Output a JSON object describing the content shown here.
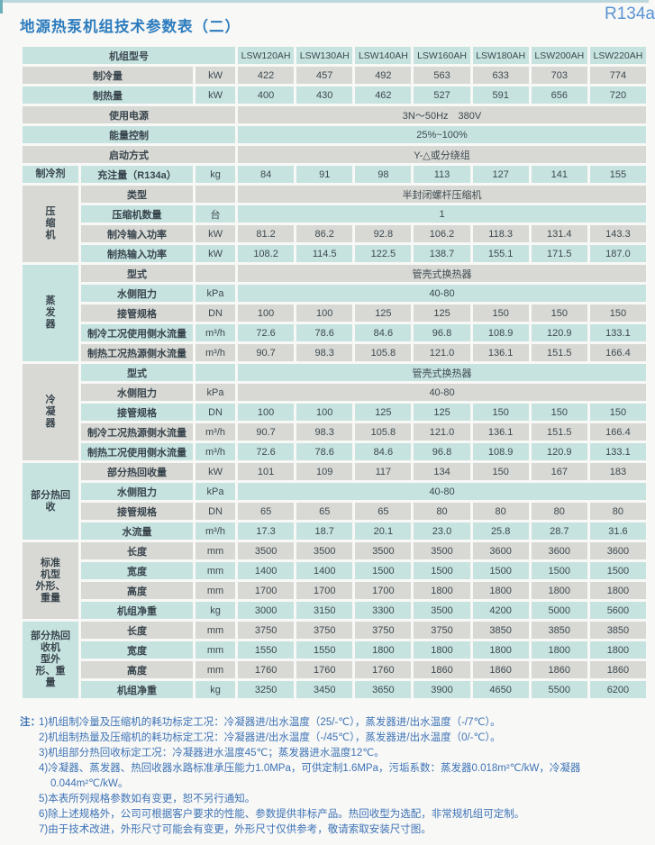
{
  "page": {
    "title": "地源热泵机组技术参数表（二）",
    "badge": "R134a"
  },
  "colors": {
    "row_cyan": "#c6e3e0",
    "row_gray": "#d8d9d4",
    "title_blue": "#2d7cbe",
    "badge_blue": "#5a94d4",
    "notes_blue": "#3e73b6"
  },
  "table": {
    "header_label": "机组型号",
    "models": [
      "LSW120AH",
      "LSW130AH",
      "LSW140AH",
      "LSW160AH",
      "LSW180AH",
      "LSW200AH",
      "LSW220AH"
    ],
    "rows": [
      {
        "label": "制冷量",
        "unit": "kW",
        "nogroup": true,
        "values": [
          "422",
          "457",
          "492",
          "563",
          "633",
          "703",
          "774"
        ]
      },
      {
        "label": "制热量",
        "unit": "kW",
        "nogroup": true,
        "values": [
          "400",
          "430",
          "462",
          "527",
          "591",
          "656",
          "720"
        ]
      },
      {
        "label": "使用电源",
        "nogroup": true,
        "merge_unit": true,
        "value": "3N～50Hz　380V"
      },
      {
        "label": "能量控制",
        "nogroup": true,
        "merge_unit": true,
        "value": "25%~100%"
      },
      {
        "label": "启动方式",
        "nogroup": true,
        "merge_unit": true,
        "value": "Y-△或分绕组"
      },
      {
        "group": {
          "text": "制冷剂",
          "span": 1,
          "color": "c",
          "name": "refrigerant"
        },
        "label": "充注量（R134a）",
        "unit": "kg",
        "values": [
          "84",
          "91",
          "98",
          "113",
          "127",
          "141",
          "155"
        ]
      },
      {
        "group": {
          "text": "压\n缩\n机",
          "span": 4,
          "color": "g",
          "name": "compressor"
        },
        "label": "类型",
        "unit": "",
        "value": "半封闭螺杆压缩机"
      },
      {
        "label": "压缩机数量",
        "unit": "台",
        "value": "1"
      },
      {
        "label": "制冷输入功率",
        "unit": "kW",
        "values": [
          "81.2",
          "86.2",
          "92.8",
          "106.2",
          "118.3",
          "131.4",
          "143.3"
        ]
      },
      {
        "label": "制热输入功率",
        "unit": "kW",
        "values": [
          "108.2",
          "114.5",
          "122.5",
          "138.7",
          "155.1",
          "171.5",
          "187.0"
        ]
      },
      {
        "group": {
          "text": "蒸\n发\n器",
          "span": 5,
          "color": "c",
          "name": "evaporator"
        },
        "label": "型式",
        "unit": "",
        "value": "管壳式换热器"
      },
      {
        "label": "水侧阻力",
        "unit": "kPa",
        "value": "40-80"
      },
      {
        "label": "接管规格",
        "unit": "DN",
        "values": [
          "100",
          "100",
          "125",
          "125",
          "150",
          "150",
          "150"
        ]
      },
      {
        "label": "制冷工况使用侧水流量",
        "unit": "m³/h",
        "values": [
          "72.6",
          "78.6",
          "84.6",
          "96.8",
          "108.9",
          "120.9",
          "133.1"
        ]
      },
      {
        "label": "制热工况热源侧水流量",
        "unit": "m³/h",
        "values": [
          "90.7",
          "98.3",
          "105.8",
          "121.0",
          "136.1",
          "151.5",
          "166.4"
        ]
      },
      {
        "group": {
          "text": "冷\n凝\n器",
          "span": 5,
          "color": "g",
          "name": "condenser"
        },
        "label": "型式",
        "unit": "",
        "value": "管壳式换热器"
      },
      {
        "label": "水侧阻力",
        "unit": "kPa",
        "value": "40-80"
      },
      {
        "label": "接管规格",
        "unit": "DN",
        "values": [
          "100",
          "100",
          "125",
          "125",
          "150",
          "150",
          "150"
        ]
      },
      {
        "label": "制冷工况热源侧水流量",
        "unit": "m³/h",
        "values": [
          "90.7",
          "98.3",
          "105.8",
          "121.0",
          "136.1",
          "151.5",
          "166.4"
        ]
      },
      {
        "label": "制热工况使用侧水流量",
        "unit": "m³/h",
        "values": [
          "72.6",
          "78.6",
          "84.6",
          "96.8",
          "108.9",
          "120.9",
          "133.1"
        ]
      },
      {
        "group": {
          "text": "部分热回\n收",
          "span": 4,
          "color": "c",
          "name": "partial-heat-recovery"
        },
        "label": "部分热回收量",
        "unit": "kW",
        "values": [
          "101",
          "109",
          "117",
          "134",
          "150",
          "167",
          "183"
        ]
      },
      {
        "label": "水侧阻力",
        "unit": "kPa",
        "value": "40-80"
      },
      {
        "label": "接管规格",
        "unit": "DN",
        "values": [
          "65",
          "65",
          "65",
          "80",
          "80",
          "80",
          "80"
        ]
      },
      {
        "label": "水流量",
        "unit": "m³/h",
        "values": [
          "17.3",
          "18.7",
          "20.1",
          "23.0",
          "25.8",
          "28.7",
          "31.6"
        ]
      },
      {
        "group": {
          "text": "标准\n机型\n外形、\n重量",
          "span": 4,
          "color": "g",
          "name": "standard-unit-dimensions"
        },
        "label": "长度",
        "unit": "mm",
        "values": [
          "3500",
          "3500",
          "3500",
          "3500",
          "3600",
          "3600",
          "3600"
        ]
      },
      {
        "label": "宽度",
        "unit": "mm",
        "values": [
          "1400",
          "1400",
          "1500",
          "1500",
          "1500",
          "1500",
          "1500"
        ]
      },
      {
        "label": "高度",
        "unit": "mm",
        "values": [
          "1700",
          "1700",
          "1700",
          "1800",
          "1800",
          "1800",
          "1800"
        ]
      },
      {
        "label": "机组净重",
        "unit": "kg",
        "values": [
          "3000",
          "3150",
          "3300",
          "3500",
          "4200",
          "5000",
          "5600"
        ]
      },
      {
        "group": {
          "text": "部分热回\n收机\n型外\n形、重\n量",
          "span": 4,
          "color": "c",
          "name": "heat-recovery-unit-dimensions"
        },
        "label": "长度",
        "unit": "mm",
        "values": [
          "3750",
          "3750",
          "3750",
          "3750",
          "3850",
          "3850",
          "3850"
        ]
      },
      {
        "label": "宽度",
        "unit": "mm",
        "values": [
          "1550",
          "1550",
          "1800",
          "1800",
          "1800",
          "1800",
          "1800"
        ]
      },
      {
        "label": "高度",
        "unit": "mm",
        "values": [
          "1760",
          "1760",
          "1760",
          "1860",
          "1860",
          "1860",
          "1860"
        ]
      },
      {
        "label": "机组净重",
        "unit": "kg",
        "values": [
          "3250",
          "3450",
          "3650",
          "3900",
          "4650",
          "5500",
          "6200"
        ]
      }
    ]
  },
  "notes": {
    "prefix": "注：",
    "items": [
      "1)机组制冷量及压缩机的耗功标定工况：冷凝器进/出水温度（25/-℃），蒸发器进/出水温度（-/7℃）。",
      "2)机组制热量及压缩机的耗功标定工况：冷凝器进/出水温度（-/45℃），蒸发器进/出水温度（0/-℃）。",
      "3)机组部分热回收标定工况：冷凝器进水温度45℃；蒸发器进水温度12℃。",
      "4)冷凝器、蒸发器、热回收器水路标准承压能力1.0MPa，可供定制1.6MPa，污垢系数：蒸发器0.018m²℃/kW，冷凝器0.044m²℃/kW。",
      "5)本表所列规格参数如有变更，恕不另行通知。",
      "6)除上述规格外，公司可根据客户要求的性能、参数提供非标产品。热回收型为选配，非常规机组可定制。",
      "7)由于技术改进，外形尺寸可能会有变更，外形尺寸仅供参考，敬请索取安装尺寸图。"
    ]
  }
}
